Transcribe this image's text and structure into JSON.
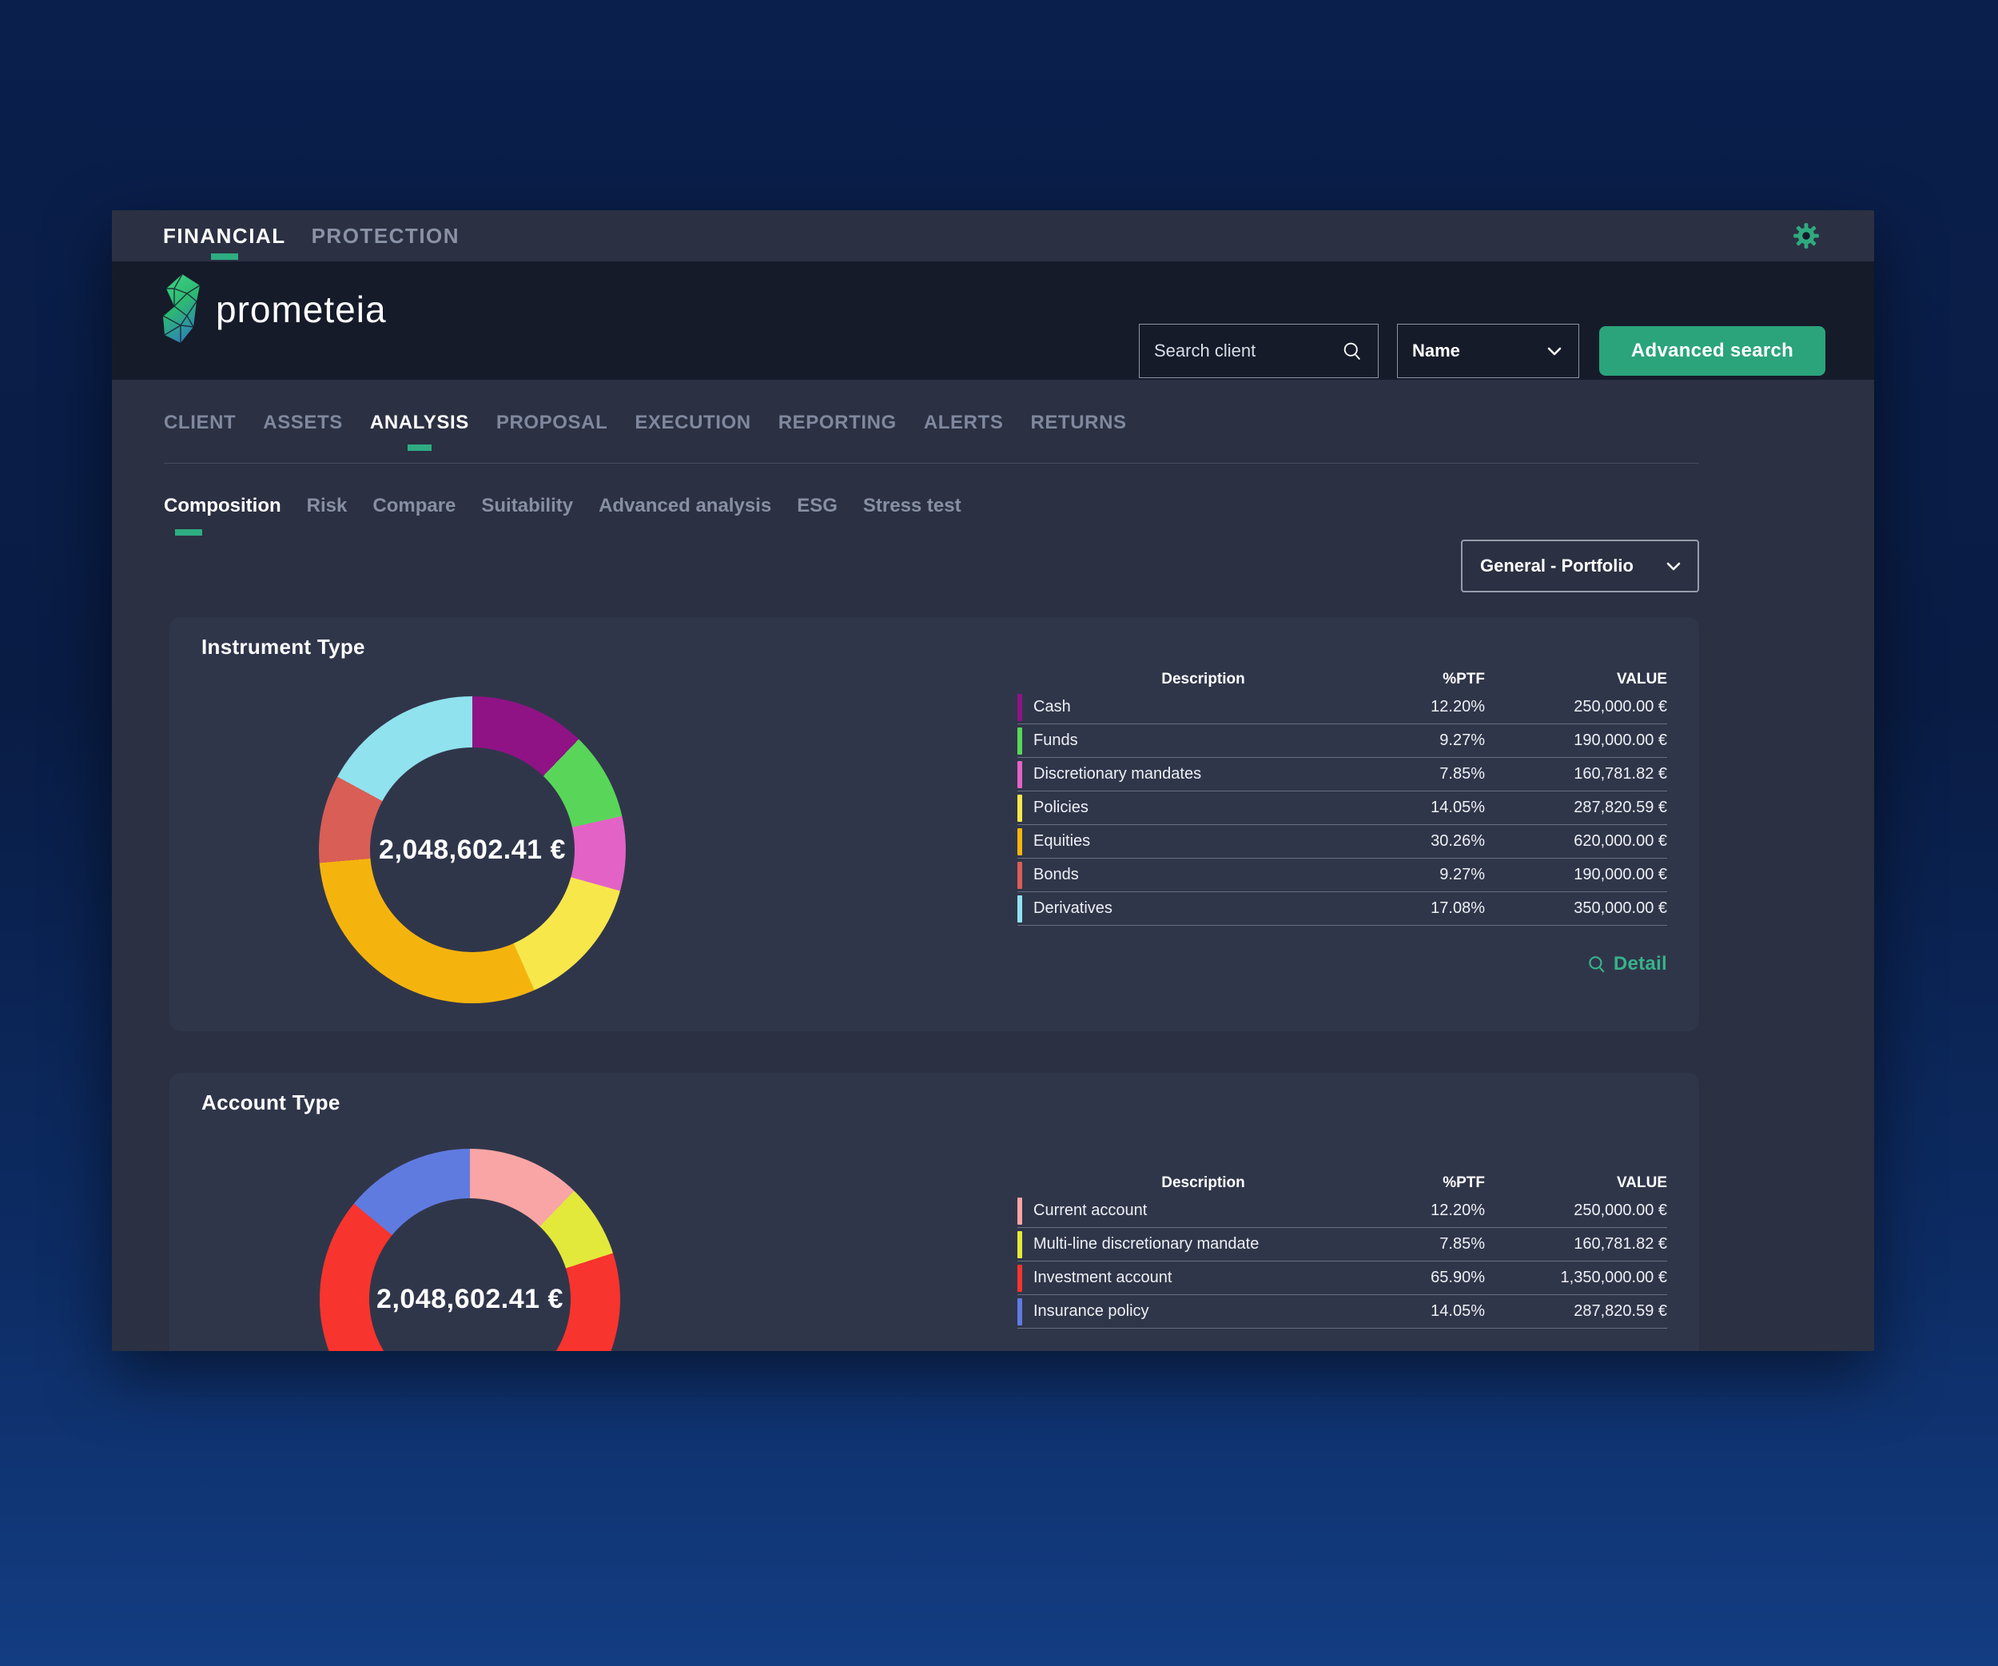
{
  "theme": {
    "accent_teal": "#2EAD82",
    "button_green": "#2BA47B",
    "link_green": "#38B28A",
    "gear_green": "#2FAA7E",
    "window_bg": "#2b3042",
    "card_bg": "#30364a",
    "header_band_bg": "#161b2a"
  },
  "topbar": {
    "tabs": [
      {
        "label": "FINANCIAL",
        "active": true
      },
      {
        "label": "PROTECTION",
        "active": false
      }
    ]
  },
  "header": {
    "logo_text": "prometeia",
    "search": {
      "placeholder": "Search client"
    },
    "search_by": {
      "value": "Name"
    },
    "advanced_search_label": "Advanced search"
  },
  "nav": {
    "items": [
      {
        "label": "CLIENT",
        "active": false
      },
      {
        "label": "ASSETS",
        "active": false
      },
      {
        "label": "ANALYSIS",
        "active": true
      },
      {
        "label": "PROPOSAL",
        "active": false
      },
      {
        "label": "EXECUTION",
        "active": false
      },
      {
        "label": "REPORTING",
        "active": false
      },
      {
        "label": "ALERTS",
        "active": false
      },
      {
        "label": "RETURNS",
        "active": false
      }
    ]
  },
  "subnav": {
    "items": [
      {
        "label": "Composition",
        "active": true
      },
      {
        "label": "Risk",
        "active": false
      },
      {
        "label": "Compare",
        "active": false
      },
      {
        "label": "Suitability",
        "active": false
      },
      {
        "label": "Advanced analysis",
        "active": false
      },
      {
        "label": "ESG",
        "active": false
      },
      {
        "label": "Stress test",
        "active": false
      }
    ]
  },
  "portfolio_selector": {
    "value": "General - Portfolio"
  },
  "cards": [
    {
      "title": "Instrument Type",
      "center_label": "2,048,602.41 €",
      "columns": {
        "description": "Description",
        "ptf": "%PTF",
        "value": "VALUE"
      },
      "rows": [
        {
          "label": "Cash",
          "ptf": "12.20%",
          "value": "250,000.00 €",
          "color": "#8F1385"
        },
        {
          "label": "Funds",
          "ptf": "9.27%",
          "value": "190,000.00 €",
          "color": "#59D659"
        },
        {
          "label": "Discretionary mandates",
          "ptf": "7.85%",
          "value": "160,781.82 €",
          "color": "#E263C5"
        },
        {
          "label": "Policies",
          "ptf": "14.05%",
          "value": "287,820.59 €",
          "color": "#F8E74B"
        },
        {
          "label": "Equities",
          "ptf": "30.26%",
          "value": "620,000.00 €",
          "color": "#F5B40D"
        },
        {
          "label": "Bonds",
          "ptf": "9.27%",
          "value": "190,000.00 €",
          "color": "#D95E56"
        },
        {
          "label": "Derivatives",
          "ptf": "17.08%",
          "value": "350,000.00 €",
          "color": "#90E2EE"
        }
      ],
      "detail_label": "Detail"
    },
    {
      "title": "Account Type",
      "center_label": "2,048,602.41 €",
      "columns": {
        "description": "Description",
        "ptf": "%PTF",
        "value": "VALUE"
      },
      "rows": [
        {
          "label": "Current account",
          "ptf": "12.20%",
          "value": "250,000.00 €",
          "color": "#F9A5A5"
        },
        {
          "label": "Multi-line discretionary mandate",
          "ptf": "7.85%",
          "value": "160,781.82 €",
          "color": "#E3E93A"
        },
        {
          "label": "Investment account",
          "ptf": "65.90%",
          "value": "1,350,000.00 €",
          "color": "#F8342E"
        },
        {
          "label": "Insurance policy",
          "ptf": "14.05%",
          "value": "287,820.59 €",
          "color": "#607BE0"
        }
      ]
    }
  ],
  "chart_data": [
    {
      "type": "pie",
      "subtype": "donut",
      "title": "Instrument Type",
      "center_label": "2,048,602.41 €",
      "total_value_eur": 2048602.41,
      "legend_position": "right-table",
      "slices": [
        {
          "label": "Cash",
          "pct": 12.2,
          "value_eur": 250000.0,
          "color": "#8F1385"
        },
        {
          "label": "Funds",
          "pct": 9.27,
          "value_eur": 190000.0,
          "color": "#59D659"
        },
        {
          "label": "Discretionary mandates",
          "pct": 7.85,
          "value_eur": 160781.82,
          "color": "#E263C5"
        },
        {
          "label": "Policies",
          "pct": 14.05,
          "value_eur": 287820.59,
          "color": "#F8E74B"
        },
        {
          "label": "Equities",
          "pct": 30.26,
          "value_eur": 620000.0,
          "color": "#F5B40D"
        },
        {
          "label": "Bonds",
          "pct": 9.27,
          "value_eur": 190000.0,
          "color": "#D95E56"
        },
        {
          "label": "Derivatives",
          "pct": 17.08,
          "value_eur": 350000.0,
          "color": "#90E2EE"
        }
      ]
    },
    {
      "type": "pie",
      "subtype": "donut",
      "title": "Account Type",
      "center_label": "2,048,602.41 €",
      "total_value_eur": 2048602.41,
      "legend_position": "right-table",
      "slices": [
        {
          "label": "Current account",
          "pct": 12.2,
          "value_eur": 250000.0,
          "color": "#F9A5A5"
        },
        {
          "label": "Multi-line discretionary mandate",
          "pct": 7.85,
          "value_eur": 160781.82,
          "color": "#E3E93A"
        },
        {
          "label": "Investment account",
          "pct": 65.9,
          "value_eur": 1350000.0,
          "color": "#F8342E"
        },
        {
          "label": "Insurance policy",
          "pct": 14.05,
          "value_eur": 287820.59,
          "color": "#607BE0"
        }
      ]
    }
  ]
}
